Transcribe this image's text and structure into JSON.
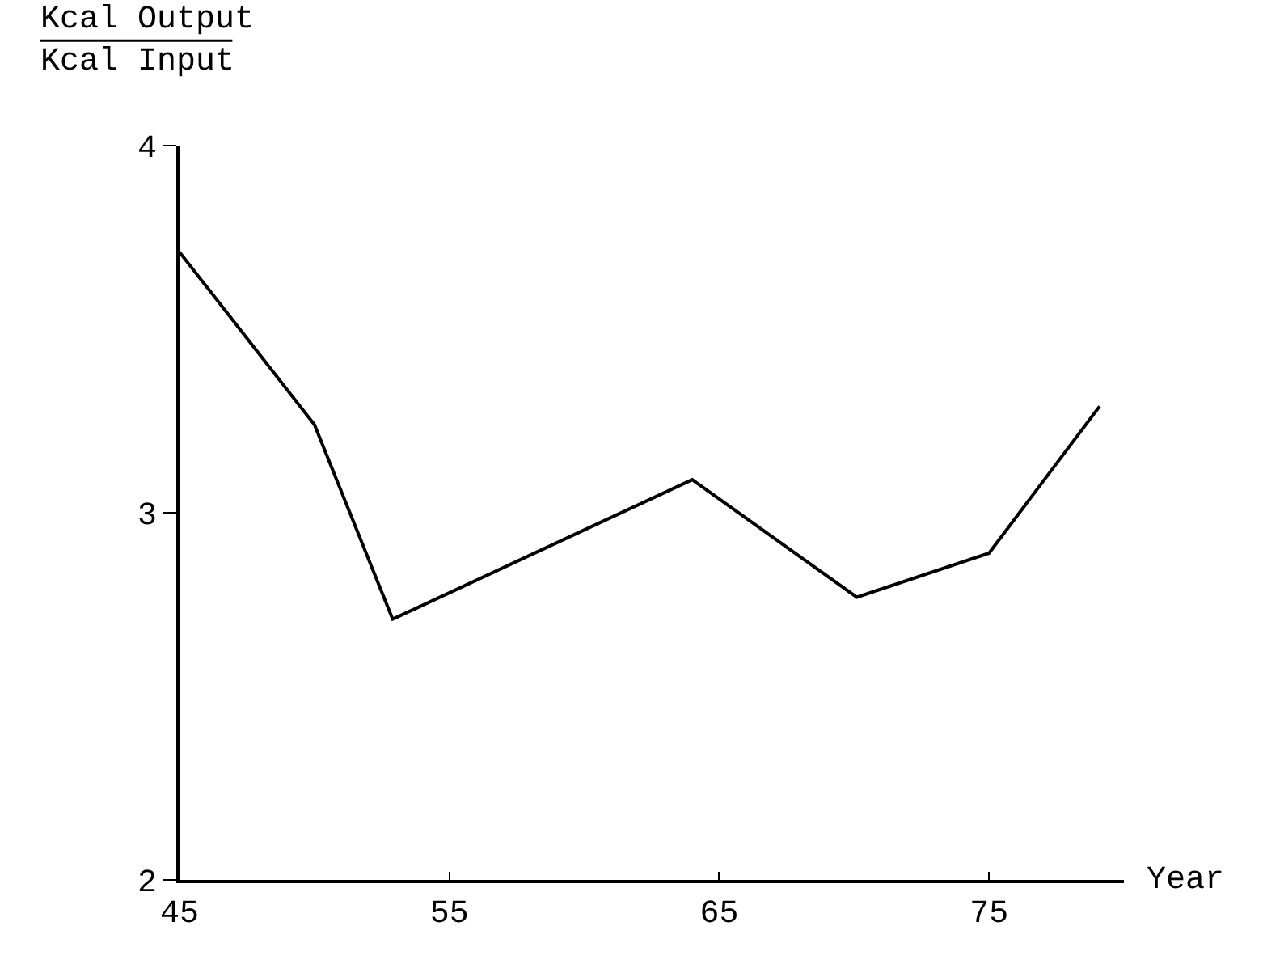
{
  "chart_data": {
    "type": "line",
    "ylabel": "Kcal Output\nKcal Input",
    "xlabel": "Year",
    "x": [
      45,
      50,
      52.9,
      64,
      70.1,
      75,
      79.1
    ],
    "series": [
      {
        "color": "#000000",
        "values": [
          3.71,
          3.24,
          2.71,
          3.09,
          2.77,
          2.89,
          3.29
        ]
      }
    ],
    "xlim": [
      45,
      80
    ],
    "xticks": [
      45,
      55,
      65,
      75
    ],
    "ylim": [
      2,
      4
    ],
    "yticks": [
      2,
      3,
      4
    ],
    "grid": false,
    "marker": "none",
    "line_style": "solid"
  }
}
